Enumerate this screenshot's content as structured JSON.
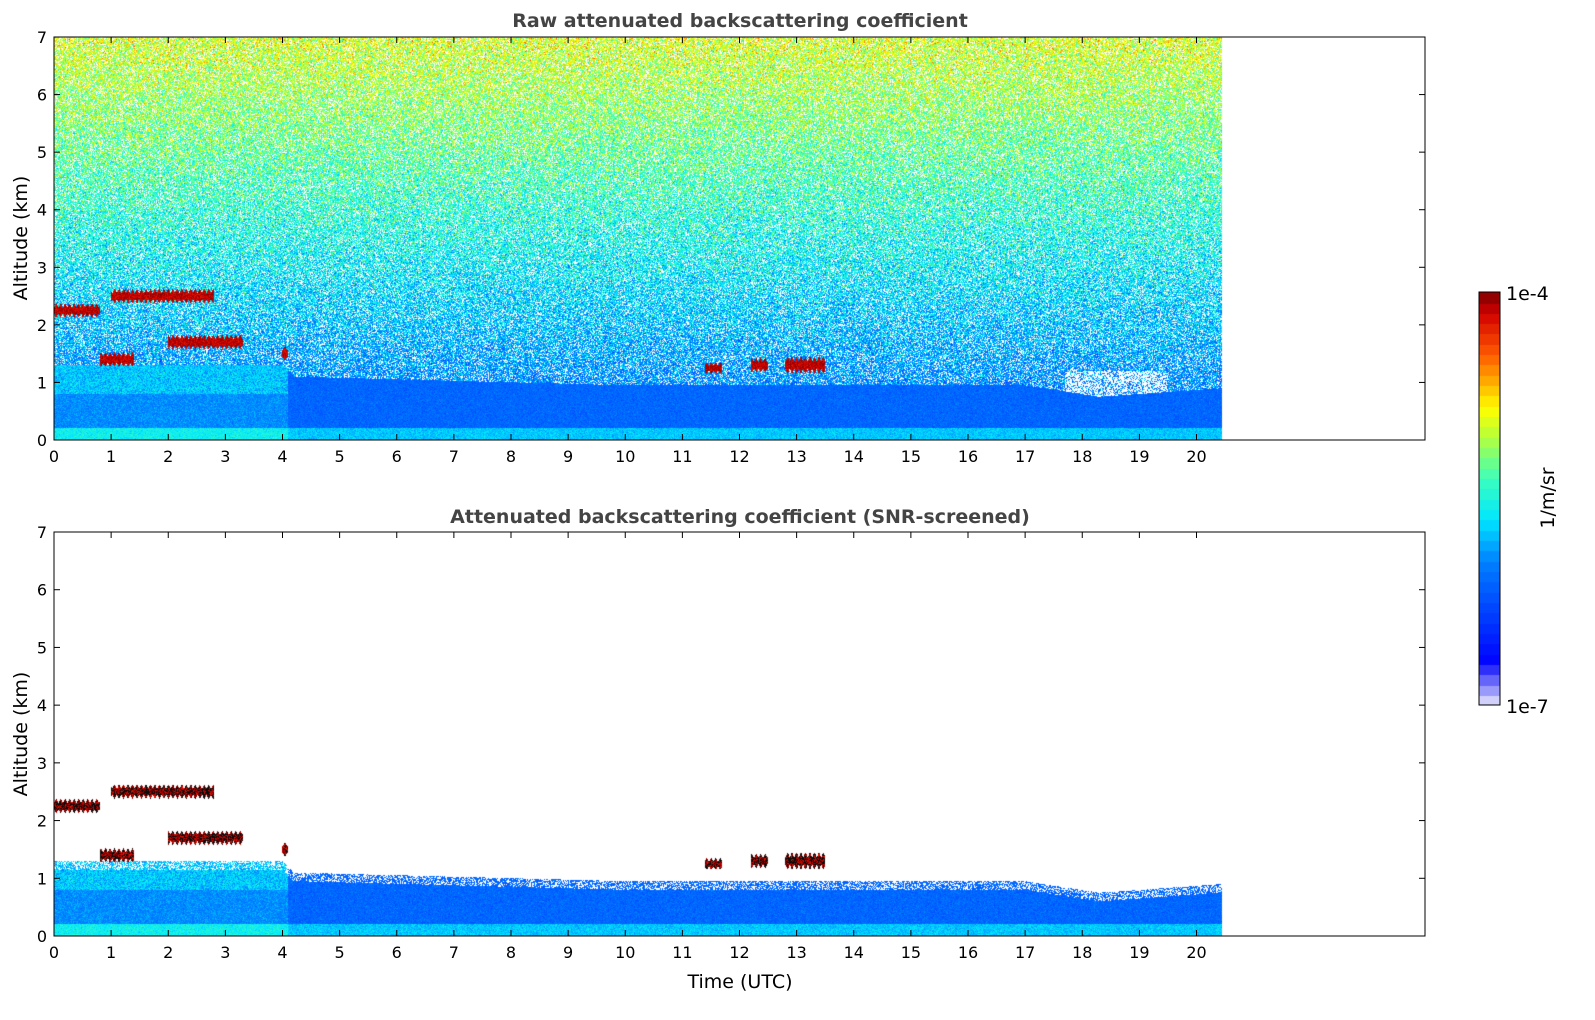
{
  "colors": {
    "frame": "#000000",
    "title": "#444444"
  },
  "chart_data": [
    {
      "type": "heatmap",
      "title": "Raw attenuated backscattering coefficient",
      "xlabel": "",
      "ylabel": "Altitude (km)",
      "xlim": [
        0,
        24
      ],
      "ylim": [
        0,
        7
      ],
      "xticks": [
        "0",
        "1",
        "2",
        "3",
        "4",
        "5",
        "6",
        "7",
        "8",
        "9",
        "10",
        "11",
        "12",
        "13",
        "14",
        "15",
        "16",
        "17",
        "18",
        "19",
        "20"
      ],
      "yticks": [
        "0",
        "1",
        "2",
        "3",
        "4",
        "5",
        "6",
        "7"
      ],
      "data_end_time": 20.45,
      "screened": false
    },
    {
      "type": "heatmap",
      "title": "Attenuated backscattering coefficient (SNR-screened)",
      "xlabel": "Time (UTC)",
      "ylabel": "Altitude (km)",
      "xlim": [
        0,
        24
      ],
      "ylim": [
        0,
        7
      ],
      "xticks": [
        "0",
        "1",
        "2",
        "3",
        "4",
        "5",
        "6",
        "7",
        "8",
        "9",
        "10",
        "11",
        "12",
        "13",
        "14",
        "15",
        "16",
        "17",
        "18",
        "19",
        "20"
      ],
      "yticks": [
        "0",
        "1",
        "2",
        "3",
        "4",
        "5",
        "6",
        "7"
      ],
      "data_end_time": 20.45,
      "screened": true
    }
  ],
  "features": {
    "boundary_layer_top_km": [
      [
        0,
        1.3
      ],
      [
        4,
        1.3
      ],
      [
        4.2,
        1.1
      ],
      [
        10,
        0.95
      ],
      [
        17,
        0.95
      ],
      [
        18.3,
        0.75
      ],
      [
        20.45,
        0.9
      ]
    ],
    "cloud_layers": [
      {
        "t0": 0.0,
        "t1": 0.8,
        "z": 2.25,
        "dz": 0.1
      },
      {
        "t0": 1.0,
        "t1": 2.8,
        "z": 2.5,
        "dz": 0.1
      },
      {
        "t0": 2.0,
        "t1": 3.3,
        "z": 1.7,
        "dz": 0.1
      },
      {
        "t0": 0.8,
        "t1": 1.4,
        "z": 1.4,
        "dz": 0.1
      },
      {
        "t0": 4.0,
        "t1": 4.1,
        "z": 1.5,
        "dz": 0.1
      },
      {
        "t0": 11.4,
        "t1": 11.7,
        "z": 1.25,
        "dz": 0.08
      },
      {
        "t0": 12.2,
        "t1": 12.5,
        "z": 1.3,
        "dz": 0.1
      },
      {
        "t0": 12.8,
        "t1": 13.5,
        "z": 1.3,
        "dz": 0.12
      }
    ]
  },
  "colorbar": {
    "label": "1/m/sr",
    "min_label": "1e-7",
    "max_label": "1e-4",
    "scale": "log"
  }
}
